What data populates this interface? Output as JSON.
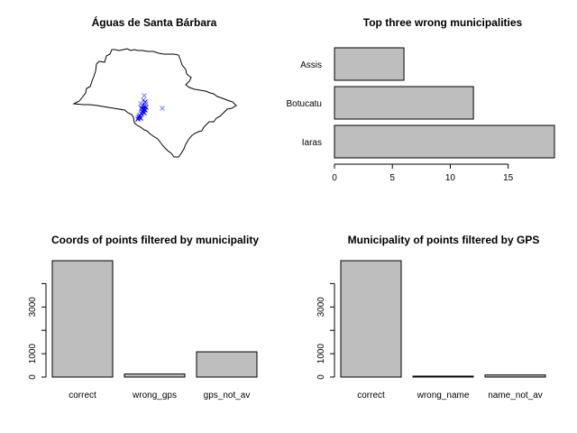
{
  "colors": {
    "bar_fill": "#bebebe",
    "bar_stroke": "#000000",
    "map_outline": "#000000",
    "point_strong": "#0000ff",
    "point_faint": "#8080ff"
  },
  "chart_data": [
    {
      "id": "map",
      "type": "scatter",
      "title": "Águas de Santa Bárbara",
      "marker": "x",
      "note_points": "point markers clustered around the municipality inside the state outline"
    },
    {
      "id": "wrong_muni",
      "type": "bar",
      "orientation": "horizontal",
      "title": "Top three wrong municipalities",
      "categories": [
        "Iaras",
        "Botucatu",
        "Assis"
      ],
      "values": [
        19,
        12,
        6
      ],
      "xlim": [
        0,
        19
      ],
      "xticks": [
        "0",
        "5",
        "10",
        "15"
      ],
      "xtick_values": [
        0,
        5,
        10,
        15
      ]
    },
    {
      "id": "coords_filtered",
      "type": "bar",
      "title": "Coords of points filtered by municipality",
      "categories": [
        "correct",
        "wrong_gps",
        "gps_not_av"
      ],
      "values": [
        4980,
        130,
        1080
      ],
      "ylim": [
        0,
        4980
      ],
      "yticks": [
        "0",
        "1000",
        "3000"
      ],
      "ytick_values": [
        0,
        1000,
        3000
      ],
      "ytick_minor": [
        2000,
        4000
      ]
    },
    {
      "id": "muni_filtered",
      "type": "bar",
      "title": "Municipality of points filtered by GPS",
      "categories": [
        "correct",
        "wrong_name",
        "name_not_av"
      ],
      "values": [
        4980,
        40,
        90
      ],
      "ylim": [
        0,
        4980
      ],
      "yticks": [
        "0",
        "1000",
        "3000"
      ],
      "ytick_values": [
        0,
        1000,
        3000
      ],
      "ytick_minor": [
        2000,
        4000
      ]
    }
  ]
}
